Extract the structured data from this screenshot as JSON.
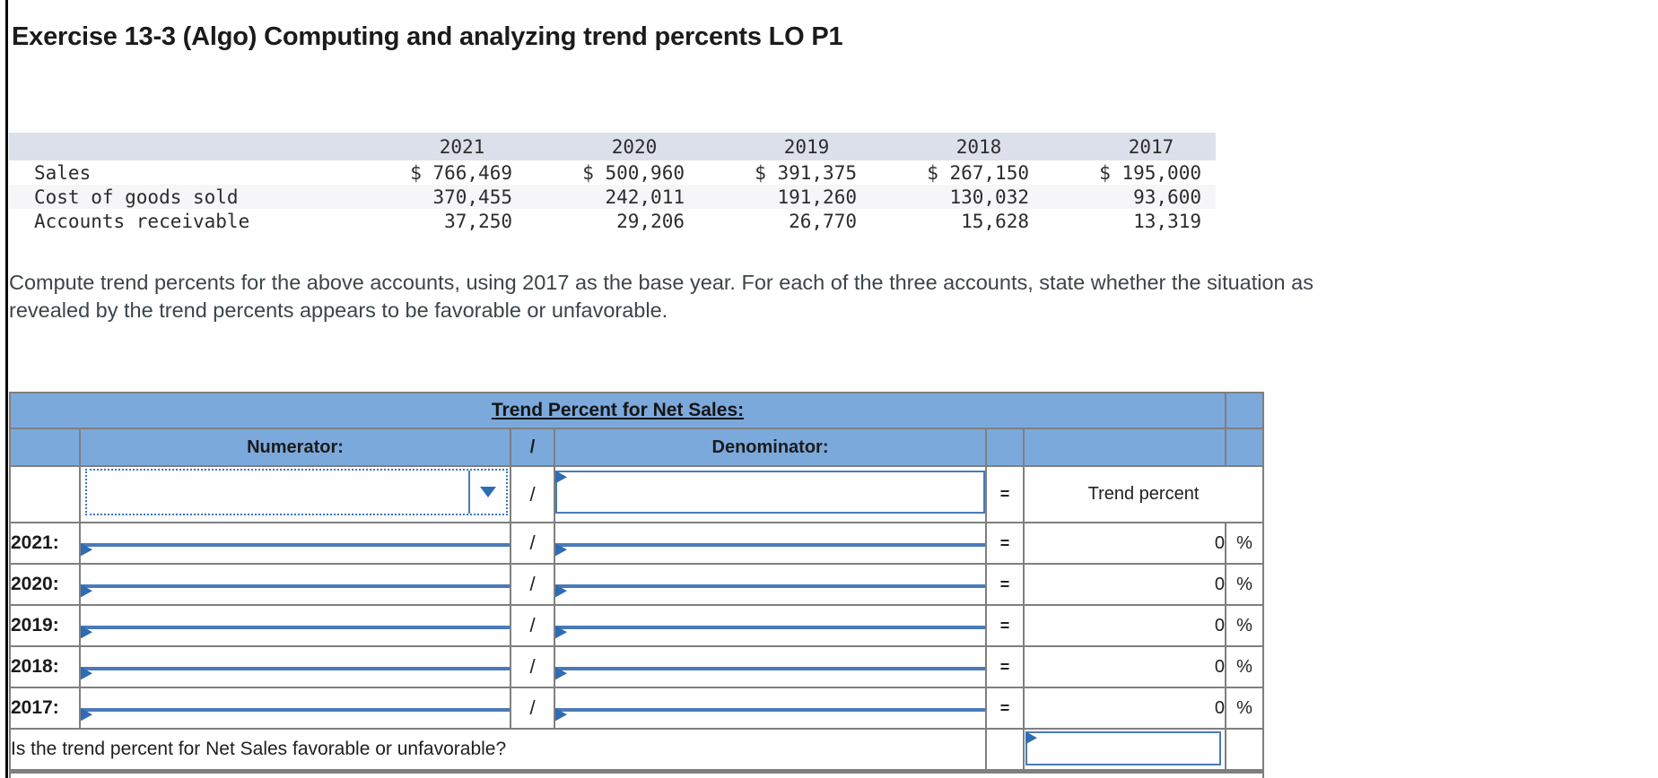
{
  "header": {
    "title": "Exercise 13-3 (Algo) Computing and analyzing trend percents LO P1"
  },
  "data_table": {
    "year_headers": [
      "2021",
      "2020",
      "2019",
      "2018",
      "2017"
    ],
    "rows": [
      {
        "label": "Sales",
        "values": [
          "$ 766,469",
          "$ 500,960",
          "$ 391,375",
          "$ 267,150",
          "$ 195,000"
        ]
      },
      {
        "label": "Cost of goods sold",
        "values": [
          "370,455",
          "242,011",
          "191,260",
          "130,032",
          "93,600"
        ]
      },
      {
        "label": "Accounts receivable",
        "values": [
          "37,250",
          "29,206",
          "26,770",
          "15,628",
          "13,319"
        ]
      }
    ]
  },
  "instructions": "Compute trend percents for the above accounts, using 2017 as the base year. For each of the three accounts, state whether the situation as revealed by the trend percents appears to be favorable or unfavorable.",
  "answer_table": {
    "title": "Trend Percent for Net Sales:",
    "numerator_header": "Numerator:",
    "divide_symbol": "/",
    "denominator_header": "Denominator:",
    "equals_symbol": "=",
    "result_header": "Trend percent",
    "percent_symbol": "%",
    "dropdown_value": "",
    "first_row_denominator_value": "",
    "formula_rows": [
      {
        "year_label": "2021:",
        "numerator_value": "",
        "denominator_value": "",
        "result_value": "0"
      },
      {
        "year_label": "2020:",
        "numerator_value": "",
        "denominator_value": "",
        "result_value": "0"
      },
      {
        "year_label": "2019:",
        "numerator_value": "",
        "denominator_value": "",
        "result_value": "0"
      },
      {
        "year_label": "2018:",
        "numerator_value": "",
        "denominator_value": "",
        "result_value": "0"
      },
      {
        "year_label": "2017:",
        "numerator_value": "",
        "denominator_value": "",
        "result_value": "0"
      }
    ],
    "question": "Is the trend percent for Net Sales favorable or unfavorable?",
    "question_answer_value": ""
  },
  "colors": {
    "table_header_blue": "#7CA9DC",
    "input_border_blue": "#4A7AB8",
    "flag_blue": "#2E6CB5",
    "dropdown_dotted_blue": "#3A76C4",
    "data_header_bg": "#DCE0EB",
    "alt_row_bg": "#F6F6F8",
    "grid_border_gray": "#7F7F7F",
    "left_rail_black": "#0B0B0B"
  }
}
